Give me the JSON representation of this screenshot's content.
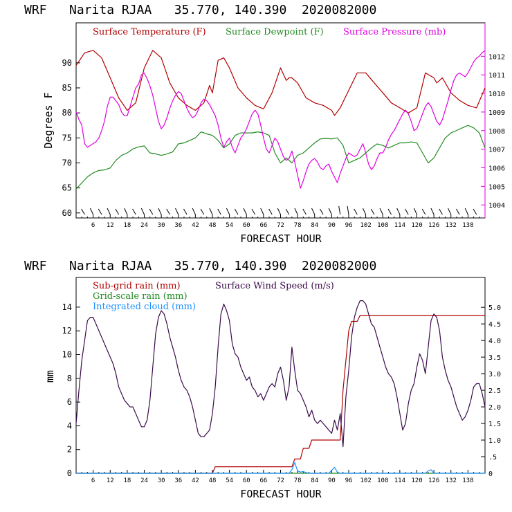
{
  "chart_data": [
    {
      "type": "line",
      "title": "WRF   Narita RJAA   35.770, 140.390  2020082000",
      "xlabel": "FORECAST HOUR",
      "ylabel": "Degrees F",
      "xlim": [
        0,
        144
      ],
      "ylim": [
        59,
        98
      ],
      "y2lim": [
        1003.3,
        1013.8
      ],
      "x_ticks": [
        6,
        12,
        18,
        24,
        30,
        36,
        42,
        48,
        54,
        60,
        66,
        72,
        78,
        84,
        90,
        96,
        102,
        108,
        114,
        120,
        126,
        132,
        138
      ],
      "y_ticks": [
        60,
        65,
        70,
        75,
        80,
        85,
        90
      ],
      "y2_ticks": [
        1004,
        1005,
        1006,
        1007,
        1008,
        1009,
        1010,
        1011,
        1012
      ],
      "colors": {
        "temperature": "#b00000",
        "dewpoint": "#228b22",
        "pressure": "#e000e0",
        "wind": "#000000"
      },
      "wind_barbs_row": "surface wind barbs along the bottom of the plot",
      "series": [
        {
          "name": "Surface Temperature (F)",
          "axis": "left",
          "x": [
            0,
            3,
            6,
            9,
            12,
            15,
            18,
            21,
            24,
            27,
            30,
            33,
            36,
            39,
            42,
            45,
            47,
            48,
            50,
            52,
            54,
            57,
            60,
            63,
            66,
            69,
            72,
            74,
            75,
            76,
            78,
            81,
            84,
            87,
            90,
            91,
            93,
            96,
            99,
            102,
            105,
            108,
            111,
            114,
            117,
            120,
            123,
            126,
            127,
            129,
            132,
            135,
            138,
            141,
            144
          ],
          "values": [
            89.5,
            92,
            92.5,
            91,
            87,
            83,
            80.5,
            82,
            89,
            92.5,
            91,
            86,
            83,
            81.5,
            80.5,
            82,
            85.5,
            84,
            90.5,
            91,
            89,
            85,
            83,
            81.5,
            80.8,
            84,
            89,
            86.5,
            87,
            87,
            86,
            83,
            82,
            81.5,
            80.5,
            79.5,
            81,
            84.5,
            88,
            88,
            86,
            84,
            82,
            81,
            80,
            81,
            88,
            87,
            86,
            87,
            84,
            82.5,
            81.5,
            81,
            85
          ]
        },
        {
          "name": "Surface Dewpoint (F)",
          "axis": "left",
          "x": [
            0,
            2,
            4,
            6,
            8,
            10,
            12,
            14,
            16,
            18,
            20,
            22,
            24,
            26,
            28,
            30,
            32,
            34,
            36,
            38,
            40,
            42,
            44,
            46,
            48,
            50,
            52,
            54,
            56,
            58,
            60,
            62,
            64,
            66,
            68,
            70,
            72,
            74,
            76,
            78,
            80,
            82,
            84,
            86,
            88,
            90,
            92,
            94,
            96,
            98,
            100,
            102,
            104,
            106,
            108,
            110,
            112,
            114,
            116,
            118,
            120,
            122,
            124,
            126,
            128,
            130,
            132,
            134,
            136,
            138,
            140,
            142,
            144
          ],
          "values": [
            64.8,
            66,
            67.2,
            68,
            68.5,
            68.6,
            69,
            70.5,
            71.5,
            72,
            72.8,
            73.2,
            73.4,
            72,
            71.8,
            71.5,
            71.8,
            72.2,
            73.8,
            74,
            74.5,
            75,
            76.2,
            75.8,
            75.5,
            74.5,
            73,
            73.8,
            75.5,
            76,
            76,
            76,
            76.2,
            76,
            75.5,
            72,
            70,
            71,
            70,
            71.5,
            72,
            73,
            74,
            74.8,
            74.9,
            74.8,
            75,
            73.5,
            70,
            70.5,
            71,
            72,
            73,
            73.8,
            73.5,
            73,
            73.5,
            74,
            74,
            74.2,
            74,
            72,
            70,
            71,
            73,
            75,
            76,
            76.5,
            77,
            77.5,
            77,
            76,
            73
          ]
        },
        {
          "name": "Surface Pressure (mb)",
          "axis": "right",
          "x": [
            0,
            1,
            2,
            3,
            4,
            5,
            6,
            7,
            8,
            9,
            10,
            11,
            12,
            13,
            14,
            15,
            16,
            17,
            18,
            19,
            20,
            21,
            22,
            23,
            24,
            25,
            26,
            27,
            28,
            29,
            30,
            31,
            32,
            33,
            34,
            35,
            36,
            37,
            38,
            39,
            40,
            41,
            42,
            43,
            44,
            45,
            46,
            47,
            48,
            49,
            50,
            51,
            52,
            53,
            54,
            55,
            56,
            57,
            58,
            59,
            60,
            61,
            62,
            63,
            64,
            65,
            66,
            67,
            68,
            69,
            70,
            71,
            72,
            73,
            74,
            75,
            76,
            77,
            78,
            79,
            80,
            81,
            82,
            83,
            84,
            85,
            86,
            87,
            88,
            89,
            90,
            91,
            92,
            93,
            94,
            95,
            96,
            97,
            98,
            99,
            100,
            101,
            102,
            103,
            104,
            105,
            106,
            107,
            108,
            109,
            110,
            111,
            112,
            113,
            114,
            115,
            116,
            117,
            118,
            119,
            120,
            121,
            122,
            123,
            124,
            125,
            126,
            127,
            128,
            129,
            130,
            131,
            132,
            133,
            134,
            135,
            136,
            137,
            138,
            139,
            140,
            141,
            142,
            143,
            144
          ],
          "values": [
            1009.0,
            1008.6,
            1008.3,
            1007.3,
            1007.1,
            1007.2,
            1007.3,
            1007.4,
            1007.6,
            1008.0,
            1008.5,
            1009.3,
            1009.8,
            1009.8,
            1009.6,
            1009.4,
            1009.0,
            1008.8,
            1008.8,
            1009.3,
            1009.8,
            1010.3,
            1010.5,
            1011.0,
            1011.1,
            1010.8,
            1010.4,
            1009.9,
            1009.2,
            1008.5,
            1008.1,
            1008.3,
            1008.7,
            1009.2,
            1009.6,
            1009.9,
            1010.1,
            1010.0,
            1009.6,
            1009.2,
            1008.9,
            1008.7,
            1008.8,
            1009.1,
            1009.5,
            1009.7,
            1009.6,
            1009.4,
            1009.1,
            1008.8,
            1008.3,
            1007.6,
            1007.1,
            1007.4,
            1007.6,
            1007.1,
            1006.8,
            1007.2,
            1007.6,
            1007.8,
            1008.1,
            1008.5,
            1008.9,
            1009.1,
            1008.9,
            1008.3,
            1007.6,
            1007.0,
            1006.8,
            1007.2,
            1007.6,
            1007.4,
            1007.0,
            1006.6,
            1006.4,
            1006.5,
            1006.9,
            1006.3,
            1005.6,
            1004.9,
            1005.3,
            1005.8,
            1006.2,
            1006.4,
            1006.5,
            1006.3,
            1006.0,
            1005.9,
            1006.1,
            1006.2,
            1005.8,
            1005.5,
            1005.2,
            1005.7,
            1006.1,
            1006.5,
            1006.8,
            1006.7,
            1006.6,
            1006.7,
            1007.0,
            1007.3,
            1006.8,
            1006.2,
            1005.9,
            1006.1,
            1006.5,
            1006.8,
            1006.8,
            1007.1,
            1007.5,
            1007.8,
            1008.0,
            1008.3,
            1008.6,
            1008.9,
            1009.1,
            1008.9,
            1008.5,
            1008.0,
            1008.1,
            1008.5,
            1008.9,
            1009.3,
            1009.5,
            1009.3,
            1008.9,
            1008.5,
            1008.3,
            1008.6,
            1009.1,
            1009.6,
            1010.2,
            1010.7,
            1011.0,
            1011.1,
            1011.0,
            1010.9,
            1011.1,
            1011.4,
            1011.7,
            1011.9,
            1012.0,
            1012.2,
            1012.3
          ]
        }
      ]
    },
    {
      "type": "line",
      "title": "WRF   Narita RJAA   35.770, 140.390  2020082000",
      "xlabel": "FORECAST HOUR",
      "ylabel": "mm",
      "xlim": [
        0,
        144
      ],
      "ylim": [
        0,
        16.5
      ],
      "y2lim": [
        0,
        5.9
      ],
      "x_ticks": [
        6,
        12,
        18,
        24,
        30,
        36,
        42,
        48,
        54,
        60,
        66,
        72,
        78,
        84,
        90,
        96,
        102,
        108,
        114,
        120,
        126,
        132,
        138
      ],
      "y_ticks": [
        0,
        2,
        4,
        6,
        8,
        10,
        12,
        14
      ],
      "y2_ticks": [
        0,
        0.5,
        1.0,
        1.5,
        2.0,
        2.5,
        3.0,
        3.5,
        4.0,
        4.5,
        5.0
      ],
      "y2_tick_labels": [
        "0",
        ".5",
        "1.0",
        "1.5",
        "2.0",
        "2.5",
        "3.0",
        "3.5",
        "4.0",
        "4.5",
        "5.0"
      ],
      "colors": {
        "subgrid": "#b00000",
        "gridscale": "#228b22",
        "cloud": "#1e90ff",
        "wind": "#3a0a4a"
      },
      "series": [
        {
          "name": "Sub-grid rain (mm)",
          "axis": "left",
          "x": [
            0,
            48,
            49,
            76,
            77,
            79,
            80,
            82,
            83,
            93,
            94,
            96,
            97,
            99,
            100,
            144
          ],
          "values": [
            0,
            0,
            0.55,
            0.55,
            1.2,
            1.2,
            2.1,
            2.1,
            2.8,
            2.8,
            7.0,
            12.0,
            12.8,
            12.8,
            13.3,
            13.3
          ]
        },
        {
          "name": "Grid-scale rain (mm)",
          "axis": "left",
          "x": [
            0,
            144
          ],
          "values": [
            0,
            0
          ]
        },
        {
          "name": "Integrated cloud (mm)",
          "axis": "left",
          "x": [
            0,
            75,
            76,
            77,
            78,
            79,
            80,
            81,
            82,
            89,
            90,
            91,
            92,
            93,
            123,
            124,
            125,
            126,
            144
          ],
          "values": [
            0,
            0,
            0.3,
            0.9,
            0.2,
            0.1,
            0.15,
            0.05,
            0,
            0,
            0.25,
            0.5,
            0.1,
            0,
            0,
            0.2,
            0.3,
            0,
            0
          ]
        },
        {
          "name": "Surface Wind Speed (m/s)",
          "axis": "right",
          "x": [
            0,
            1,
            2,
            3,
            4,
            5,
            6,
            7,
            8,
            9,
            10,
            11,
            12,
            13,
            14,
            15,
            16,
            17,
            18,
            19,
            20,
            21,
            22,
            23,
            24,
            25,
            26,
            27,
            28,
            29,
            30,
            31,
            32,
            33,
            34,
            35,
            36,
            37,
            38,
            39,
            40,
            41,
            42,
            43,
            44,
            45,
            46,
            47,
            48,
            49,
            50,
            51,
            52,
            53,
            54,
            55,
            56,
            57,
            58,
            59,
            60,
            61,
            62,
            63,
            64,
            65,
            66,
            67,
            68,
            69,
            70,
            71,
            72,
            73,
            74,
            75,
            76,
            77,
            78,
            79,
            80,
            81,
            82,
            83,
            84,
            85,
            86,
            87,
            88,
            89,
            90,
            91,
            92,
            93,
            94,
            95,
            96,
            97,
            98,
            99,
            100,
            101,
            102,
            103,
            104,
            105,
            106,
            107,
            108,
            109,
            110,
            111,
            112,
            113,
            114,
            115,
            116,
            117,
            118,
            119,
            120,
            121,
            122,
            123,
            124,
            125,
            126,
            127,
            128,
            129,
            130,
            131,
            132,
            133,
            134,
            135,
            136,
            137,
            138,
            139,
            140,
            141,
            142,
            143,
            144
          ],
          "values": [
            1.5,
            2.5,
            3.4,
            4.0,
            4.6,
            4.7,
            4.7,
            4.5,
            4.3,
            4.1,
            3.9,
            3.7,
            3.5,
            3.3,
            3.0,
            2.6,
            2.4,
            2.2,
            2.1,
            2.0,
            2.0,
            1.8,
            1.6,
            1.4,
            1.4,
            1.6,
            2.2,
            3.2,
            4.2,
            4.7,
            4.9,
            4.8,
            4.5,
            4.1,
            3.8,
            3.5,
            3.1,
            2.8,
            2.6,
            2.5,
            2.3,
            2.0,
            1.6,
            1.2,
            1.1,
            1.1,
            1.2,
            1.3,
            1.8,
            2.6,
            3.8,
            4.8,
            5.1,
            4.9,
            4.6,
            3.9,
            3.6,
            3.5,
            3.2,
            3.0,
            2.8,
            2.9,
            2.6,
            2.5,
            2.3,
            2.4,
            2.2,
            2.4,
            2.6,
            2.7,
            2.6,
            3.0,
            3.2,
            2.8,
            2.2,
            2.6,
            3.8,
            3.1,
            2.5,
            2.4,
            2.2,
            2.0,
            1.7,
            1.9,
            1.6,
            1.5,
            1.6,
            1.5,
            1.4,
            1.3,
            1.2,
            1.6,
            1.3,
            1.8,
            0.8,
            2.3,
            3.1,
            4.1,
            4.7,
            5.0,
            5.2,
            5.2,
            5.1,
            4.8,
            4.5,
            4.4,
            4.1,
            3.8,
            3.5,
            3.2,
            3.0,
            2.9,
            2.7,
            2.3,
            1.8,
            1.3,
            1.5,
            2.1,
            2.5,
            2.7,
            3.2,
            3.6,
            3.4,
            3.0,
            3.8,
            4.6,
            4.8,
            4.7,
            4.3,
            3.5,
            3.1,
            2.8,
            2.6,
            2.3,
            2.0,
            1.8,
            1.6,
            1.7,
            1.9,
            2.2,
            2.6,
            2.7,
            2.7,
            2.4,
            2.0
          ]
        }
      ]
    }
  ],
  "top": {
    "title": "WRF   Narita RJAA   35.770, 140.390  2020082000",
    "ylabel": "Degrees F",
    "xlabel": "FORECAST HOUR",
    "legend": {
      "temperature": "Surface Temperature (F)",
      "dewpoint": "Surface Dewpoint (F)",
      "pressure": "Surface Pressure (mb)"
    }
  },
  "bottom": {
    "title": "WRF   Narita RJAA   35.770, 140.390  2020082000",
    "ylabel": "mm",
    "xlabel": "FORECAST HOUR",
    "legend": {
      "subgrid": "Sub-grid rain (mm)",
      "wind": "Surface Wind Speed (m/s)",
      "gridscale": "Grid-scale rain (mm)",
      "cloud": "Integrated cloud (mm)"
    }
  }
}
